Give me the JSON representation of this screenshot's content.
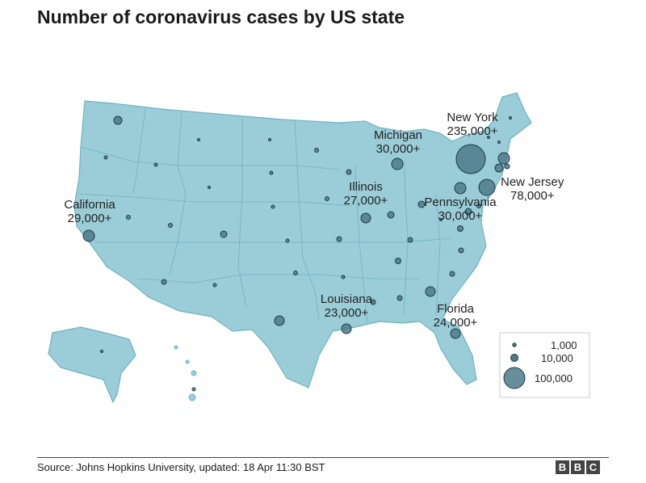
{
  "title": "Number of coronavirus cases by US state",
  "source": "Source: Johns Hopkins University, updated: 18 Apr 11:30 BST",
  "logo": [
    "B",
    "B",
    "C"
  ],
  "colors": {
    "land": "#9acdd7",
    "border": "#6fb2c2",
    "bubble": "#4e7a8a",
    "bubble_stroke": "#1f3b48"
  },
  "callouts": [
    {
      "name": "New York",
      "value": "235,000+"
    },
    {
      "name": "Michigan",
      "value": "30,000+"
    },
    {
      "name": "Illinois",
      "value": "27,000+"
    },
    {
      "name": "New Jersey",
      "value": "78,000+"
    },
    {
      "name": "Pennsylvania",
      "value": "30,000+"
    },
    {
      "name": "California",
      "value": "29,000+"
    },
    {
      "name": "Louisiana",
      "value": "23,000+"
    },
    {
      "name": "Florida",
      "value": "24,000+"
    }
  ],
  "legend": [
    {
      "label": "1,000",
      "cases": 1000
    },
    {
      "label": "10,000",
      "cases": 10000
    },
    {
      "label": "100,000",
      "cases": 100000
    }
  ]
}
